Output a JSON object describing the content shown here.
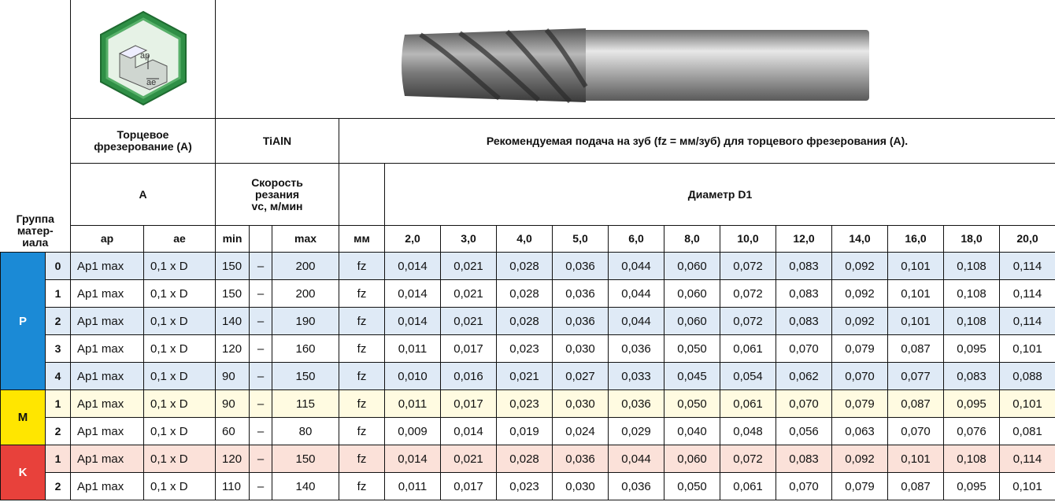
{
  "icon_labels": [
    "ap",
    "ae"
  ],
  "header": {
    "group_label": "Группа\nматер-\nиала",
    "operation": "Торцевое\nфрезерование (A)",
    "coating": "TiAlN",
    "feed_title": "Рекомендуемая подача на зуб (fz = мм/зуб) для торцевого фрезерования (A).",
    "mode": "A",
    "speed": "Скорость\nрезания\nvc, м/мин",
    "diameter": "Диаметр D1",
    "columns": {
      "ap": "ap",
      "ae": "ae",
      "min": "min",
      "max": "max",
      "unit": "мм"
    },
    "diameters": [
      "2,0",
      "3,0",
      "4,0",
      "5,0",
      "6,0",
      "8,0",
      "10,0",
      "12,0",
      "14,0",
      "16,0",
      "18,0",
      "20,0"
    ]
  },
  "groups": [
    {
      "label": "P",
      "rows": [
        {
          "sub": "0",
          "ap": "Ap1 max",
          "ae": "0,1 x D",
          "min": "150",
          "dash": "–",
          "max": "200",
          "unit": "fz",
          "values": [
            "0,014",
            "0,021",
            "0,028",
            "0,036",
            "0,044",
            "0,060",
            "0,072",
            "0,083",
            "0,092",
            "0,101",
            "0,108",
            "0,114"
          ]
        },
        {
          "sub": "1",
          "ap": "Ap1 max",
          "ae": "0,1 x D",
          "min": "150",
          "dash": "–",
          "max": "200",
          "unit": "fz",
          "values": [
            "0,014",
            "0,021",
            "0,028",
            "0,036",
            "0,044",
            "0,060",
            "0,072",
            "0,083",
            "0,092",
            "0,101",
            "0,108",
            "0,114"
          ]
        },
        {
          "sub": "2",
          "ap": "Ap1 max",
          "ae": "0,1 x D",
          "min": "140",
          "dash": "–",
          "max": "190",
          "unit": "fz",
          "values": [
            "0,014",
            "0,021",
            "0,028",
            "0,036",
            "0,044",
            "0,060",
            "0,072",
            "0,083",
            "0,092",
            "0,101",
            "0,108",
            "0,114"
          ]
        },
        {
          "sub": "3",
          "ap": "Ap1 max",
          "ae": "0,1 x D",
          "min": "120",
          "dash": "–",
          "max": "160",
          "unit": "fz",
          "values": [
            "0,011",
            "0,017",
            "0,023",
            "0,030",
            "0,036",
            "0,050",
            "0,061",
            "0,070",
            "0,079",
            "0,087",
            "0,095",
            "0,101"
          ]
        },
        {
          "sub": "4",
          "ap": "Ap1 max",
          "ae": "0,1 x D",
          "min": "90",
          "dash": "–",
          "max": "150",
          "unit": "fz",
          "values": [
            "0,010",
            "0,016",
            "0,021",
            "0,027",
            "0,033",
            "0,045",
            "0,054",
            "0,062",
            "0,070",
            "0,077",
            "0,083",
            "0,088"
          ]
        }
      ]
    },
    {
      "label": "M",
      "rows": [
        {
          "sub": "1",
          "ap": "Ap1 max",
          "ae": "0,1 x D",
          "min": "90",
          "dash": "–",
          "max": "115",
          "unit": "fz",
          "values": [
            "0,011",
            "0,017",
            "0,023",
            "0,030",
            "0,036",
            "0,050",
            "0,061",
            "0,070",
            "0,079",
            "0,087",
            "0,095",
            "0,101"
          ]
        },
        {
          "sub": "2",
          "ap": "Ap1 max",
          "ae": "0,1 x D",
          "min": "60",
          "dash": "–",
          "max": "80",
          "unit": "fz",
          "values": [
            "0,009",
            "0,014",
            "0,019",
            "0,024",
            "0,029",
            "0,040",
            "0,048",
            "0,056",
            "0,063",
            "0,070",
            "0,076",
            "0,081"
          ]
        }
      ]
    },
    {
      "label": "K",
      "rows": [
        {
          "sub": "1",
          "ap": "Ap1 max",
          "ae": "0,1 x D",
          "min": "120",
          "dash": "–",
          "max": "150",
          "unit": "fz",
          "values": [
            "0,014",
            "0,021",
            "0,028",
            "0,036",
            "0,044",
            "0,060",
            "0,072",
            "0,083",
            "0,092",
            "0,101",
            "0,108",
            "0,114"
          ]
        },
        {
          "sub": "2",
          "ap": "Ap1 max",
          "ae": "0,1 x D",
          "min": "110",
          "dash": "–",
          "max": "140",
          "unit": "fz",
          "values": [
            "0,011",
            "0,017",
            "0,023",
            "0,030",
            "0,036",
            "0,050",
            "0,061",
            "0,070",
            "0,079",
            "0,087",
            "0,095",
            "0,101"
          ]
        }
      ]
    }
  ]
}
